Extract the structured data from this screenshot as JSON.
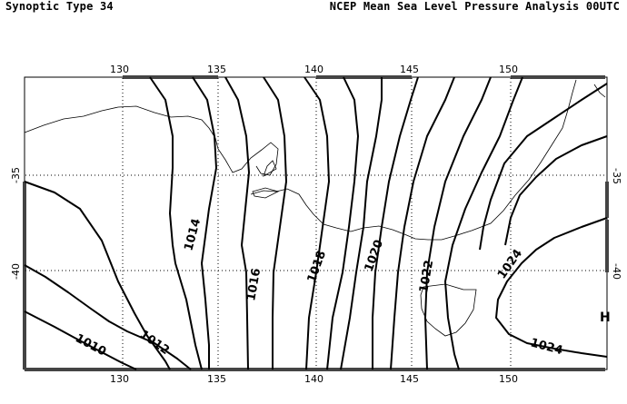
{
  "header": {
    "left_title": "Synoptic Type 34",
    "right_title": "NCEP Mean Sea Level Pressure Analysis 00UTC"
  },
  "axes": {
    "longitude_ticks": [
      "130",
      "135",
      "140",
      "145",
      "150"
    ],
    "latitude_ticks": [
      "-35",
      "-40"
    ],
    "grid": true
  },
  "isobars": [
    {
      "label": "1010"
    },
    {
      "label": "1012"
    },
    {
      "label": "1014"
    },
    {
      "label": "1016"
    },
    {
      "label": "1018"
    },
    {
      "label": "1020"
    },
    {
      "label": "1022"
    },
    {
      "label": "1024"
    },
    {
      "label": "1024"
    }
  ],
  "pressure_centers": [
    {
      "label": "H"
    }
  ],
  "colors": {
    "isobar": "#000000",
    "coastline": "#000000",
    "grid": "#000000",
    "background": "#ffffff"
  }
}
